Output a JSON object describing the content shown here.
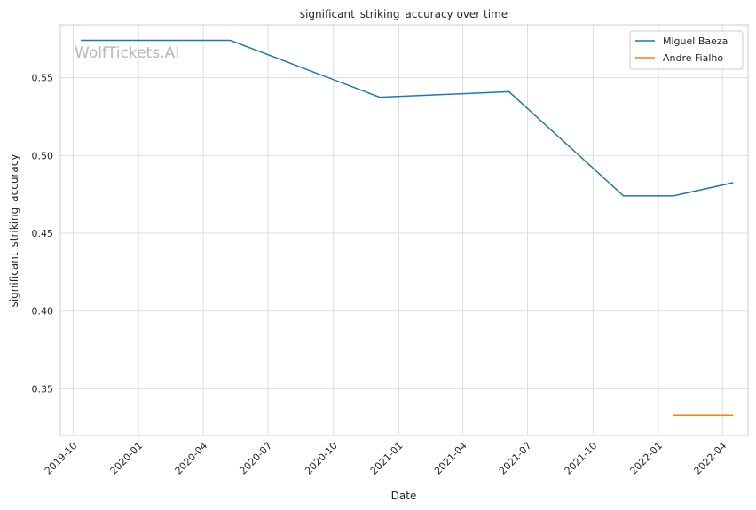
{
  "chart_data": {
    "type": "line",
    "title": "significant_striking_accuracy over time",
    "xlabel": "Date",
    "ylabel": "significant_striking_accuracy",
    "x_ticks": [
      "2019-10",
      "2020-01",
      "2020-04",
      "2020-07",
      "2020-10",
      "2021-01",
      "2021-04",
      "2021-07",
      "2021-10",
      "2022-01",
      "2022-04"
    ],
    "y_ticks": [
      "0.35",
      "0.40",
      "0.45",
      "0.50",
      "0.55"
    ],
    "ylim": [
      0.32,
      0.584
    ],
    "xlim": [
      "2019-09-13",
      "2022-05-07"
    ],
    "grid": true,
    "legend_position": "top-right",
    "series": [
      {
        "name": "Miguel Baeza",
        "color": "#1f77b4",
        "points": [
          {
            "x": "2019-10-12",
            "y": 0.574
          },
          {
            "x": "2020-05-09",
            "y": 0.574
          },
          {
            "x": "2020-12-05",
            "y": 0.5375
          },
          {
            "x": "2021-06-05",
            "y": 0.541
          },
          {
            "x": "2021-11-13",
            "y": 0.474
          },
          {
            "x": "2022-01-22",
            "y": 0.474
          },
          {
            "x": "2022-04-16",
            "y": 0.4825
          }
        ]
      },
      {
        "name": "Andre Fialho",
        "color": "#ff7f0e",
        "points": [
          {
            "x": "2022-01-22",
            "y": 0.333
          },
          {
            "x": "2022-04-16",
            "y": 0.333
          }
        ]
      }
    ],
    "watermark": "WolfTickets.AI"
  }
}
